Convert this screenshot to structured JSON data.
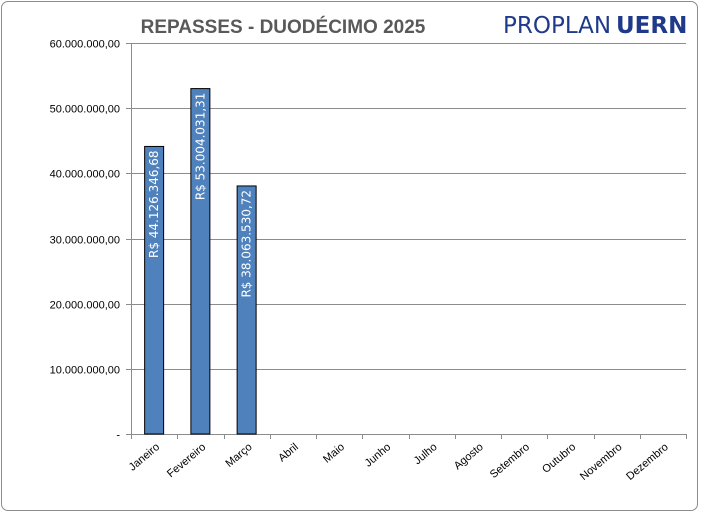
{
  "brand": {
    "part1": "PROPLAN",
    "part2": "UERN"
  },
  "chart_data": {
    "type": "bar",
    "title": "REPASSES - DUODÉCIMO 2025",
    "xlabel": "",
    "ylabel": "",
    "ylim": [
      0,
      60000000
    ],
    "yticks": [
      0,
      10000000,
      20000000,
      30000000,
      40000000,
      50000000,
      60000000
    ],
    "ytick_labels": [
      "-",
      "10.000.000,00",
      "20.000.000,00",
      "30.000.000,00",
      "40.000.000,00",
      "50.000.000,00",
      "60.000.000,00"
    ],
    "categories": [
      "Janeiro",
      "Fevereiro",
      "Março",
      "Abril",
      "Maio",
      "Junho",
      "Julho",
      "Agosto",
      "Setembro",
      "Outubro",
      "Novembro",
      "Dezembro"
    ],
    "values": [
      44126346.68,
      53004031.31,
      38063530.72,
      null,
      null,
      null,
      null,
      null,
      null,
      null,
      null,
      null
    ],
    "data_labels": [
      "R$ 44.126.346,68",
      "R$ 53.004.031,31",
      "R$ 38.063.530,72",
      "",
      "",
      "",
      "",
      "",
      "",
      "",
      "",
      ""
    ],
    "bar_color": "#4f81bd",
    "grid": true,
    "legend": "none"
  }
}
